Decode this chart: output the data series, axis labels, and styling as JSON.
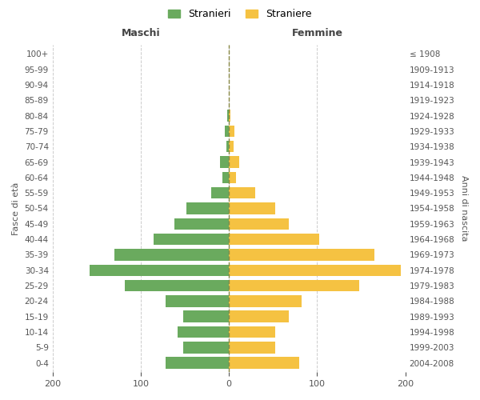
{
  "age_groups": [
    "100+",
    "95-99",
    "90-94",
    "85-89",
    "80-84",
    "75-79",
    "70-74",
    "65-69",
    "60-64",
    "55-59",
    "50-54",
    "45-49",
    "40-44",
    "35-39",
    "30-34",
    "25-29",
    "20-24",
    "15-19",
    "10-14",
    "5-9",
    "0-4"
  ],
  "birth_years": [
    "≤ 1908",
    "1909-1913",
    "1914-1918",
    "1919-1923",
    "1924-1928",
    "1929-1933",
    "1934-1938",
    "1939-1943",
    "1944-1948",
    "1949-1953",
    "1954-1958",
    "1959-1963",
    "1964-1968",
    "1969-1973",
    "1974-1978",
    "1979-1983",
    "1984-1988",
    "1989-1993",
    "1994-1998",
    "1999-2003",
    "2004-2008"
  ],
  "maschi": [
    0,
    0,
    0,
    0,
    2,
    5,
    3,
    10,
    7,
    20,
    48,
    62,
    85,
    130,
    158,
    118,
    72,
    52,
    58,
    52,
    72
  ],
  "femmine": [
    0,
    0,
    0,
    0,
    2,
    6,
    5,
    12,
    8,
    30,
    52,
    68,
    102,
    165,
    195,
    148,
    82,
    68,
    52,
    52,
    80
  ],
  "color_maschi": "#6aaa5e",
  "color_femmine": "#f5c242",
  "color_center_line": "#888844",
  "header_left": "Maschi",
  "header_right": "Femmine",
  "ylabel_left": "Fasce di età",
  "ylabel_right": "Anni di nascita",
  "legend_maschi": "Stranieri",
  "legend_femmine": "Straniere",
  "xlim": 200,
  "background_color": "#ffffff",
  "grid_color": "#cccccc"
}
